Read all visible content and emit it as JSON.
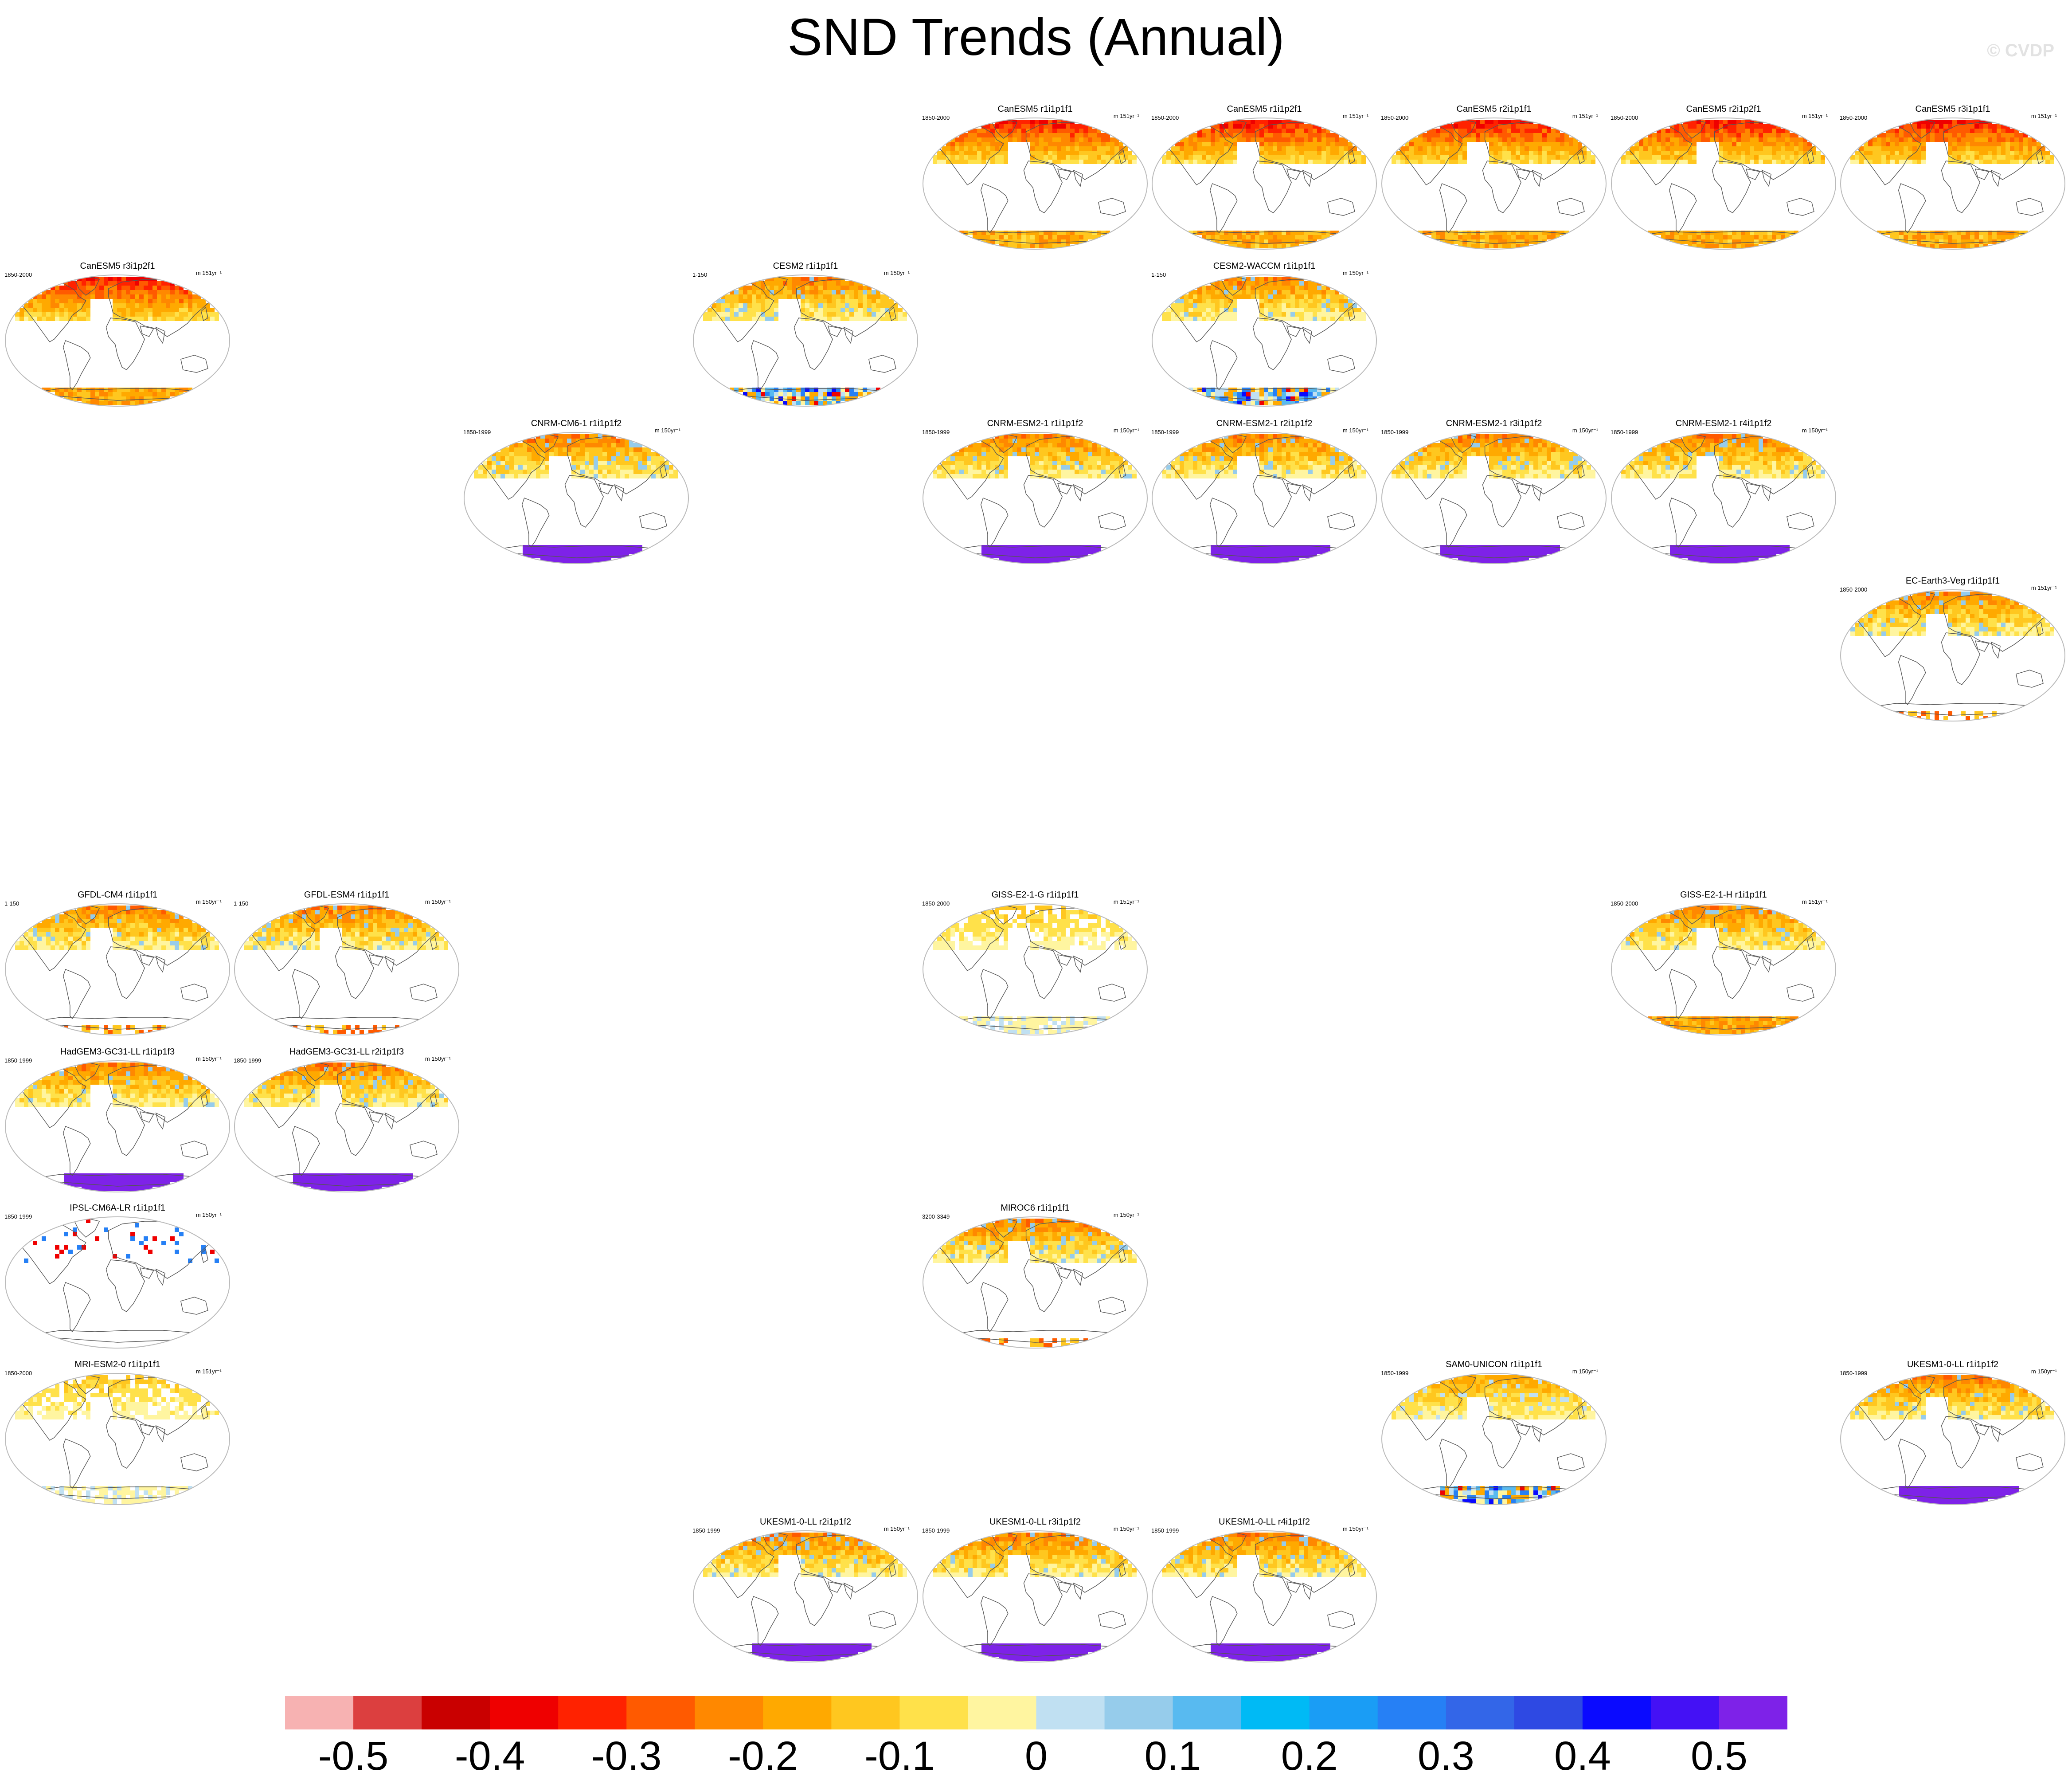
{
  "title": "SND Trends (Annual)",
  "watermark": "© CVDP",
  "colors": {
    "land_outline": "#555555",
    "panel_border": "#bbbbbb",
    "antarctic_purple": "#7e22e8"
  },
  "map_projection": "Robinson (global)",
  "panels": [
    {
      "title": "CanESM5 r1i1p1f1",
      "period": "1850-2000",
      "units": "m 151yr⁻¹",
      "row": 0,
      "col": 4,
      "style": "canesm"
    },
    {
      "title": "CanESM5 r1i1p2f1",
      "period": "1850-2000",
      "units": "m 151yr⁻¹",
      "row": 0,
      "col": 5,
      "style": "canesm"
    },
    {
      "title": "CanESM5 r2i1p1f1",
      "period": "1850-2000",
      "units": "m 151yr⁻¹",
      "row": 0,
      "col": 6,
      "style": "canesm"
    },
    {
      "title": "CanESM5 r2i1p2f1",
      "period": "1850-2000",
      "units": "m 151yr⁻¹",
      "row": 0,
      "col": 7,
      "style": "canesm"
    },
    {
      "title": "CanESM5 r3i1p1f1",
      "period": "1850-2000",
      "units": "m 151yr⁻¹",
      "row": 0,
      "col": 8,
      "style": "canesm"
    },
    {
      "title": "CanESM5 r3i1p2f1",
      "period": "1850-2000",
      "units": "m 151yr⁻¹",
      "row": 1,
      "col": 0,
      "style": "canesm"
    },
    {
      "title": "CESM2 r1i1p1f1",
      "period": "1-150",
      "units": "m 150yr⁻¹",
      "row": 1,
      "col": 3,
      "style": "cesm"
    },
    {
      "title": "CESM2-WACCM r1i1p1f1",
      "period": "1-150",
      "units": "m 150yr⁻¹",
      "row": 1,
      "col": 5,
      "style": "cesm"
    },
    {
      "title": "CNRM-CM6-1 r1i1p1f2",
      "period": "1850-1999",
      "units": "m 150yr⁻¹",
      "row": 2,
      "col": 2,
      "style": "cnrm"
    },
    {
      "title": "CNRM-ESM2-1 r1i1p1f2",
      "period": "1850-1999",
      "units": "m 150yr⁻¹",
      "row": 2,
      "col": 4,
      "style": "cnrm"
    },
    {
      "title": "CNRM-ESM2-1 r2i1p1f2",
      "period": "1850-1999",
      "units": "m 150yr⁻¹",
      "row": 2,
      "col": 5,
      "style": "cnrm"
    },
    {
      "title": "CNRM-ESM2-1 r3i1p1f2",
      "period": "1850-1999",
      "units": "m 150yr⁻¹",
      "row": 2,
      "col": 6,
      "style": "cnrm"
    },
    {
      "title": "CNRM-ESM2-1 r4i1p1f2",
      "period": "1850-1999",
      "units": "m 150yr⁻¹",
      "row": 2,
      "col": 7,
      "style": "cnrm"
    },
    {
      "title": "EC-Earth3-Veg r1i1p1f1",
      "period": "1850-2000",
      "units": "m 151yr⁻¹",
      "row": 3,
      "col": 8,
      "style": "ecearth"
    },
    {
      "title": "GFDL-CM4 r1i1p1f1",
      "period": "1-150",
      "units": "m 150yr⁻¹",
      "row": 5,
      "col": 0,
      "style": "gfdl"
    },
    {
      "title": "GFDL-ESM4 r1i1p1f1",
      "period": "1-150",
      "units": "m 150yr⁻¹",
      "row": 5,
      "col": 1,
      "style": "gfdl"
    },
    {
      "title": "GISS-E2-1-G r1i1p1f1",
      "period": "1850-2000",
      "units": "m 151yr⁻¹",
      "row": 5,
      "col": 4,
      "style": "giss_g"
    },
    {
      "title": "GISS-E2-1-H r1i1p1f1",
      "period": "1850-2000",
      "units": "m 151yr⁻¹",
      "row": 5,
      "col": 7,
      "style": "giss_h"
    },
    {
      "title": "HadGEM3-GC31-LL r1i1p1f3",
      "period": "1850-1999",
      "units": "m 150yr⁻¹",
      "row": 6,
      "col": 0,
      "style": "had"
    },
    {
      "title": "HadGEM3-GC31-LL r2i1p1f3",
      "period": "1850-1999",
      "units": "m 150yr⁻¹",
      "row": 6,
      "col": 1,
      "style": "had"
    },
    {
      "title": "IPSL-CM6A-LR r1i1p1f1",
      "period": "1850-1999",
      "units": "m 150yr⁻¹",
      "row": 7,
      "col": 0,
      "style": "ipsl"
    },
    {
      "title": "MIROC6 r1i1p1f1",
      "period": "3200-3349",
      "units": "m 150yr⁻¹",
      "row": 7,
      "col": 4,
      "style": "miroc"
    },
    {
      "title": "MRI-ESM2-0 r1i1p1f1",
      "period": "1850-2000",
      "units": "m 151yr⁻¹",
      "row": 8,
      "col": 0,
      "style": "mri"
    },
    {
      "title": "SAM0-UNICON r1i1p1f1",
      "period": "1850-1999",
      "units": "m 150yr⁻¹",
      "row": 8,
      "col": 6,
      "style": "sam0"
    },
    {
      "title": "UKESM1-0-LL r1i1p1f2",
      "period": "1850-1999",
      "units": "m 150yr⁻¹",
      "row": 8,
      "col": 8,
      "style": "ukesm"
    },
    {
      "title": "UKESM1-0-LL r2i1p1f2",
      "period": "1850-1999",
      "units": "m 150yr⁻¹",
      "row": 9,
      "col": 3,
      "style": "ukesm"
    },
    {
      "title": "UKESM1-0-LL r3i1p1f2",
      "period": "1850-1999",
      "units": "m 150yr⁻¹",
      "row": 9,
      "col": 4,
      "style": "ukesm"
    },
    {
      "title": "UKESM1-0-LL r4i1p1f2",
      "period": "1850-1999",
      "units": "m 150yr⁻¹",
      "row": 9,
      "col": 5,
      "style": "ukesm"
    }
  ],
  "colorbar": {
    "colors": [
      "#f7b2b2",
      "#dc3f3f",
      "#c90000",
      "#ef0000",
      "#ff2200",
      "#ff5a00",
      "#ff8800",
      "#ffa900",
      "#ffc71f",
      "#ffe14a",
      "#fff5a0",
      "#c0e0f2",
      "#96cceb",
      "#58baf0",
      "#00baf5",
      "#1a9df5",
      "#2680f5",
      "#3366e8",
      "#2e49e3",
      "#0a0aff",
      "#4411f5",
      "#7e22e8"
    ],
    "labels": [
      "-0.5",
      "-0.4",
      "-0.3",
      "-0.2",
      "-0.1",
      "0",
      "0.1",
      "0.2",
      "0.3",
      "0.4",
      "0.5"
    ]
  }
}
